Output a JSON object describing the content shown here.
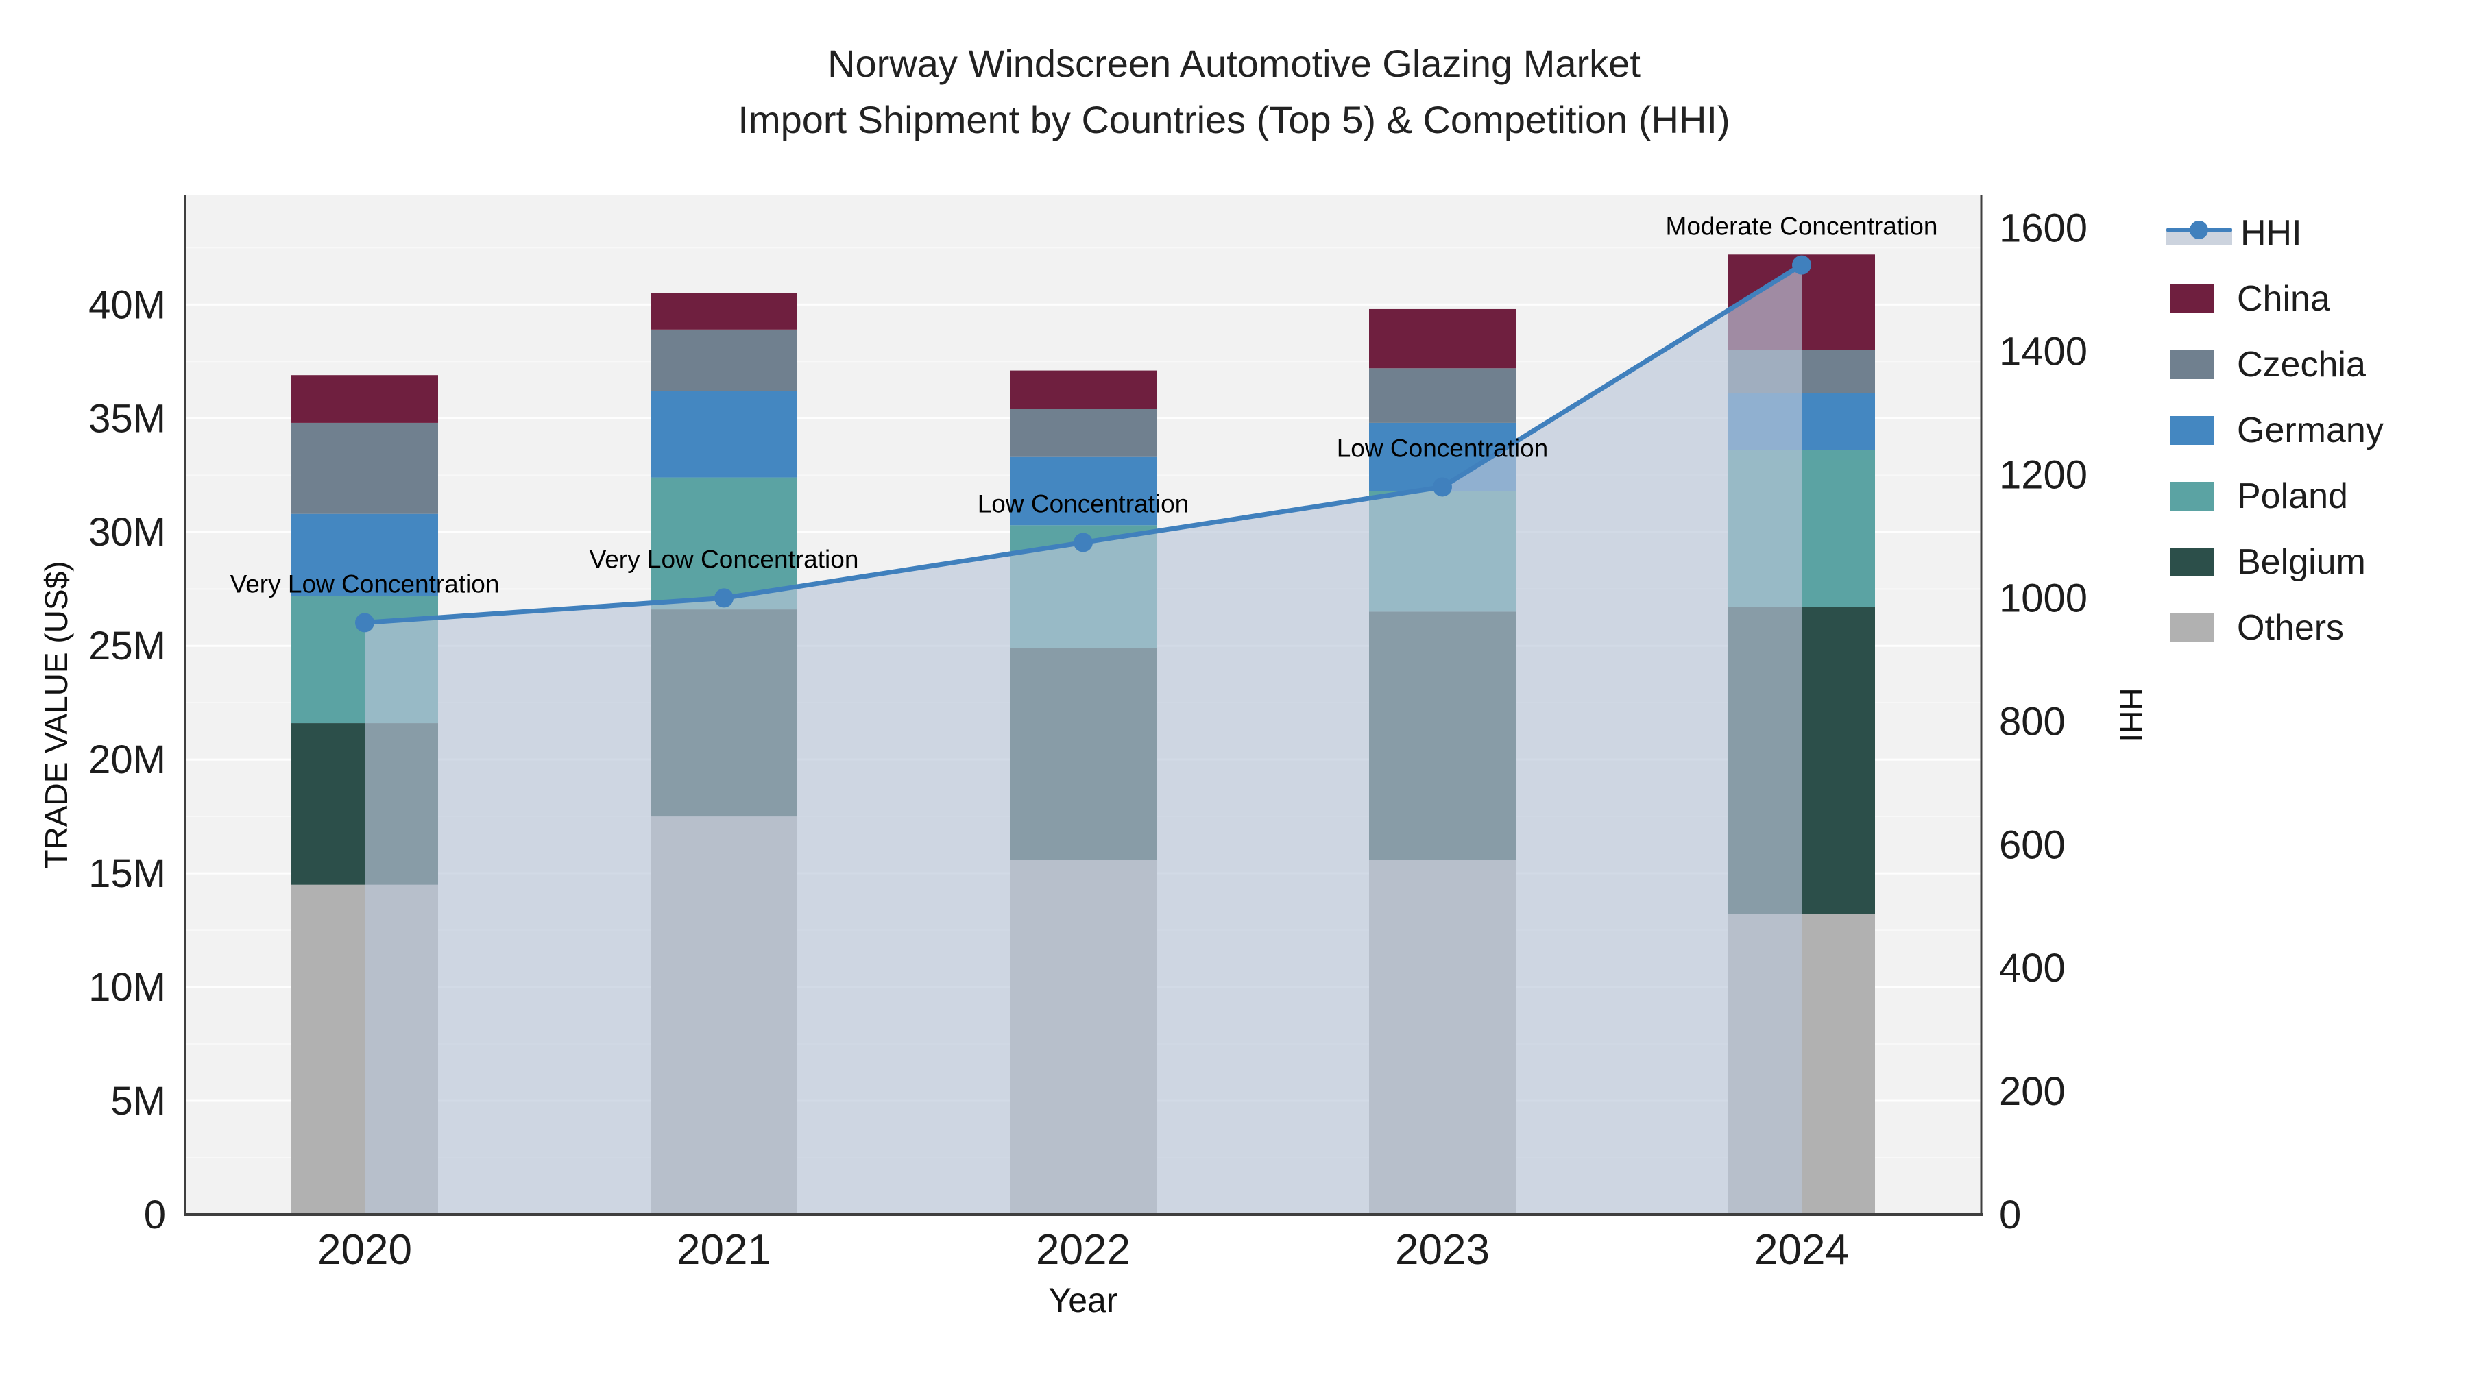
{
  "title": {
    "line1": "Norway Windscreen Automotive Glazing Market",
    "line2": "Import Shipment by Countries (Top 5) & Competition (HHI)"
  },
  "axes": {
    "left_title": "TRADE VALUE (US$)",
    "right_title": "HHI",
    "x_title": "Year",
    "left_tick_labels": [
      "0",
      "5M",
      "10M",
      "15M",
      "20M",
      "25M",
      "30M",
      "35M",
      "40M"
    ],
    "left_tick_values": [
      0,
      5,
      10,
      15,
      20,
      25,
      30,
      35,
      40
    ],
    "right_tick_labels": [
      "0",
      "200",
      "400",
      "600",
      "800",
      "1000",
      "1200",
      "1400",
      "1600"
    ],
    "right_tick_values": [
      0,
      200,
      400,
      600,
      800,
      1000,
      1200,
      1400,
      1600
    ]
  },
  "chart_data": {
    "type": "bar",
    "subtype": "stacked-bar-with-line",
    "categories": [
      "2020",
      "2021",
      "2022",
      "2023",
      "2024"
    ],
    "xlabel": "Year",
    "ylabel_left": "TRADE VALUE (US$)",
    "ylabel_right": "HHI",
    "ylim_left_millions": [
      0,
      44.8
    ],
    "ylim_right_hhi": [
      0,
      1653
    ],
    "grid": "horizontal, major every 5M, minor every 2.5M",
    "legend_position": "right",
    "series": [
      {
        "name": "Others",
        "stack_order": 1,
        "color": "#b1b1b1",
        "values_musd": [
          14.5,
          17.5,
          15.6,
          15.6,
          13.2
        ]
      },
      {
        "name": "Belgium",
        "stack_order": 2,
        "color": "#2c4f4a",
        "values_musd": [
          7.1,
          9.1,
          9.3,
          10.9,
          13.5
        ]
      },
      {
        "name": "Poland",
        "stack_order": 3,
        "color": "#5ba3a3",
        "values_musd": [
          5.6,
          5.8,
          5.4,
          5.3,
          6.9
        ]
      },
      {
        "name": "Germany",
        "stack_order": 4,
        "color": "#4487c1",
        "values_musd": [
          3.6,
          3.8,
          3.0,
          3.0,
          2.5
        ]
      },
      {
        "name": "Czechia",
        "stack_order": 5,
        "color": "#70808f",
        "values_musd": [
          4.0,
          2.7,
          2.1,
          2.4,
          1.9
        ]
      },
      {
        "name": "China",
        "stack_order": 6,
        "color": "#6f1f3f",
        "values_musd": [
          2.1,
          1.6,
          1.7,
          2.6,
          4.2
        ]
      }
    ],
    "bar_totals_musd": [
      36.9,
      40.5,
      37.1,
      39.8,
      42.2
    ],
    "hhi_line": {
      "name": "HHI",
      "color": "#4080bd",
      "area_fill": "rgba(186,198,216,0.65)",
      "values": [
        960,
        1000,
        1090,
        1180,
        1540
      ]
    },
    "annotations": [
      {
        "category": "2020",
        "text": "Very Low Concentration"
      },
      {
        "category": "2021",
        "text": "Very Low Concentration"
      },
      {
        "category": "2022",
        "text": "Low Concentration"
      },
      {
        "category": "2023",
        "text": "Low Concentration"
      },
      {
        "category": "2024",
        "text": "Moderate Concentration"
      }
    ],
    "legend_order": [
      "HHI",
      "China",
      "Czechia",
      "Germany",
      "Poland",
      "Belgium",
      "Others"
    ]
  },
  "colors": {
    "plot_background": "#f2f2f2",
    "figure_background": "#ffffff",
    "axis_line": "#3f3f3f",
    "grid_major": "rgba(255,255,255,0.9)",
    "grid_minor": "rgba(255,255,255,0.45)",
    "text": "#1d1d1d"
  }
}
